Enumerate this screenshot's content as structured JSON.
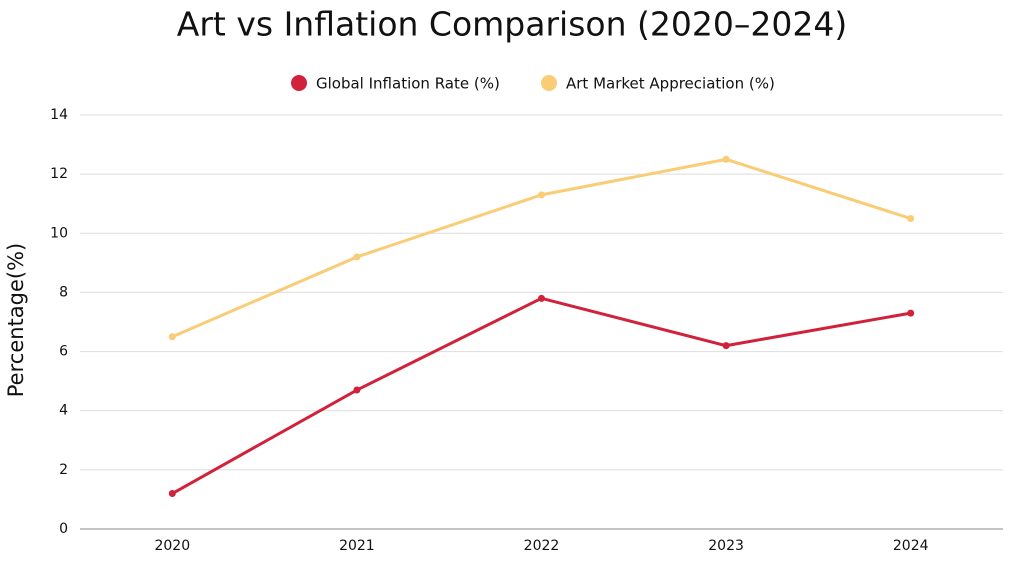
{
  "chart_data": {
    "type": "line",
    "title": "Art vs Inflation Comparison (2020–2024)",
    "y_label": "Percentage(%)",
    "categories": [
      "2020",
      "2021",
      "2022",
      "2023",
      "2024"
    ],
    "series": [
      {
        "name": "Global Inflation Rate (%)",
        "color": "#d0223a",
        "values": [
          1.2,
          4.7,
          7.8,
          6.2,
          7.3
        ]
      },
      {
        "name": "Art Market Appreciation (%)",
        "color": "#f9cc76",
        "values": [
          6.5,
          9.2,
          11.3,
          12.5,
          10.5
        ]
      }
    ],
    "ylim": [
      0,
      14
    ],
    "yticks": [
      0,
      2,
      4,
      6,
      8,
      10,
      12,
      14
    ],
    "grid": true,
    "legend": "top"
  }
}
